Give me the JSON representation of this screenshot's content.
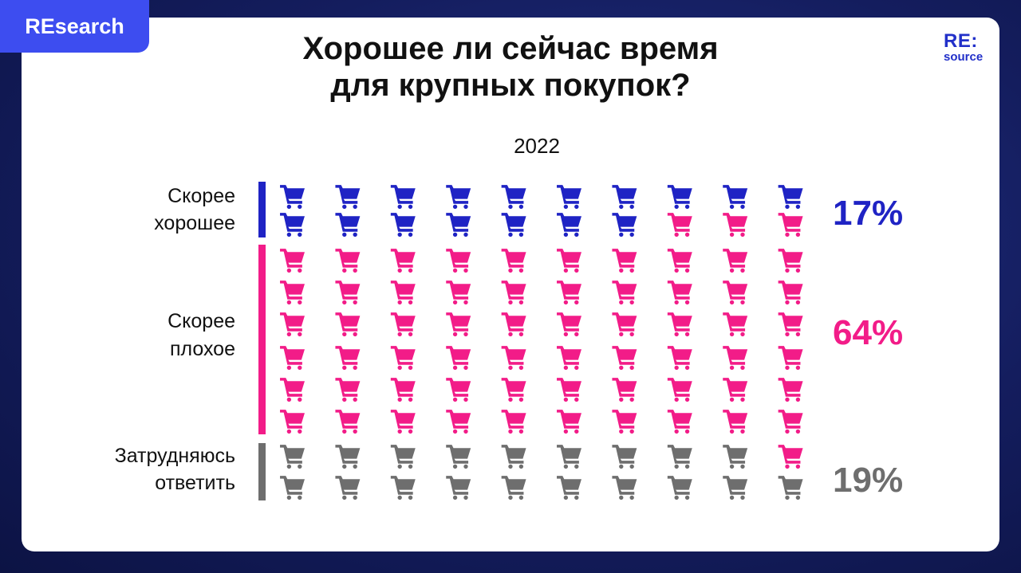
{
  "header": {
    "tag": "REsearch",
    "logo_line1": "RE:",
    "logo_line2": "source"
  },
  "chart_data": {
    "type": "pictogram",
    "title": "Хорошее ли сейчас время для крупных покупок?",
    "title_lines": [
      "Хорошее ли сейчас время",
      "для крупных покупок?"
    ],
    "subtitle": "2022",
    "grid": {
      "columns": 10,
      "rows": 10
    },
    "icon": "shopping-cart-icon",
    "segments": [
      {
        "name": "Скорее хорошее",
        "label_lines": [
          "Скорее",
          "хорошее"
        ],
        "value": 17,
        "value_label": "17%",
        "color": "#1f23c4"
      },
      {
        "name": "Скорее плохое",
        "label_lines": [
          "Скорее",
          "плохое"
        ],
        "value": 64,
        "value_label": "64%",
        "color": "#f21c88"
      },
      {
        "name": "Затрудняюсь ответить",
        "label_lines": [
          "Затрудняюсь",
          "ответить"
        ],
        "value": 19,
        "value_label": "19%",
        "color": "#6e6e6e"
      }
    ],
    "cell_assignment_by_row": [
      [
        0,
        0,
        0,
        0,
        0,
        0,
        0,
        0,
        0,
        0
      ],
      [
        0,
        0,
        0,
        0,
        0,
        0,
        0,
        1,
        1,
        1
      ],
      [
        1,
        1,
        1,
        1,
        1,
        1,
        1,
        1,
        1,
        1
      ],
      [
        1,
        1,
        1,
        1,
        1,
        1,
        1,
        1,
        1,
        1
      ],
      [
        1,
        1,
        1,
        1,
        1,
        1,
        1,
        1,
        1,
        1
      ],
      [
        1,
        1,
        1,
        1,
        1,
        1,
        1,
        1,
        1,
        1
      ],
      [
        1,
        1,
        1,
        1,
        1,
        1,
        1,
        1,
        1,
        1
      ],
      [
        1,
        1,
        1,
        1,
        1,
        1,
        1,
        1,
        1,
        1
      ],
      [
        2,
        2,
        2,
        2,
        2,
        2,
        2,
        2,
        2,
        1
      ],
      [
        2,
        2,
        2,
        2,
        2,
        2,
        2,
        2,
        2,
        2
      ]
    ]
  }
}
